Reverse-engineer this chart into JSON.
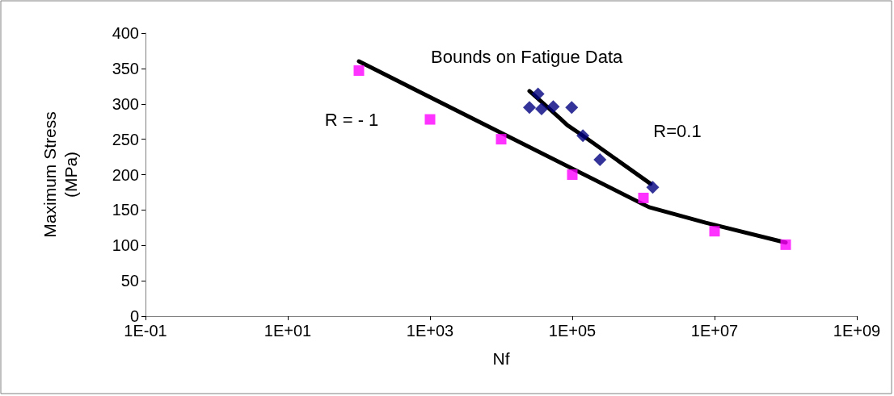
{
  "chart_data": {
    "type": "scatter",
    "title": "Bounds on Fatigue Data",
    "xlabel": "Nf",
    "ylabel": "Maximum Stress (MPa)",
    "log": "x",
    "xlim": [
      0.1,
      1000000000
    ],
    "xticks": [
      {
        "value": 0.1,
        "label": "1E-01"
      },
      {
        "value": 10,
        "label": "1E+01"
      },
      {
        "value": 1000,
        "label": "1E+03"
      },
      {
        "value": 100000,
        "label": "1E+05"
      },
      {
        "value": 10000000,
        "label": "1E+07"
      },
      {
        "value": 1000000000,
        "label": "1E+09"
      }
    ],
    "ylim": [
      0,
      400
    ],
    "yticks": [
      0,
      50,
      100,
      150,
      200,
      250,
      300,
      350,
      400
    ],
    "grid": false,
    "annotations": [
      "R = - 1",
      "R=0.1"
    ],
    "series": [
      {
        "marker": "square",
        "color": "#ff00ff",
        "x": [
          100,
          1000,
          10000,
          100000,
          1000000,
          10000000,
          100000000
        ],
        "values": [
          347,
          278,
          250,
          200,
          167,
          120,
          101
        ]
      },
      {
        "marker": "diamond",
        "color": "#000080",
        "x": [
          33000,
          25000,
          37000,
          54000,
          98000,
          141000,
          245000,
          1350000
        ],
        "values": [
          314,
          295,
          293,
          296,
          295,
          255,
          221,
          182
        ]
      },
      {
        "type": "line",
        "marker": "none",
        "color": "#000000",
        "x": [
          100,
          1200000,
          7500000,
          100000000
        ],
        "values": [
          360,
          154,
          132,
          104
        ]
      },
      {
        "type": "line",
        "marker": "none",
        "color": "#000000",
        "x": [
          25000,
          68000,
          85000,
          141000,
          1260000
        ],
        "values": [
          318,
          279,
          270,
          255,
          187
        ]
      }
    ]
  }
}
